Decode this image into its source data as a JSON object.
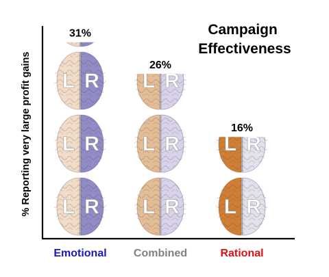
{
  "chart_data": {
    "type": "bar",
    "title": "Campaign Effectiveness",
    "title_lines": [
      "Campaign",
      "Effectiveness"
    ],
    "xlabel": "",
    "ylabel": "% Reporting very large profit gains",
    "categories": [
      "Emotional",
      "Combined",
      "Rational"
    ],
    "values": [
      31,
      26,
      16
    ],
    "value_labels": [
      "31%",
      "26%",
      "16%"
    ],
    "category_colors": [
      "#1a1ab8",
      "#808080",
      "#e01010"
    ],
    "ylim": [
      0,
      36
    ],
    "grid": false,
    "bar_style": "stacked brain illustrations",
    "hemisphere_letters": [
      "L",
      "R"
    ],
    "left_hemisphere_colors": [
      "#f0dcc8",
      "#e3bd96",
      "#cf7f35"
    ],
    "right_hemisphere_colors": [
      "#8f8cc6",
      "#d8d3e8",
      "#e2e2ec"
    ]
  }
}
